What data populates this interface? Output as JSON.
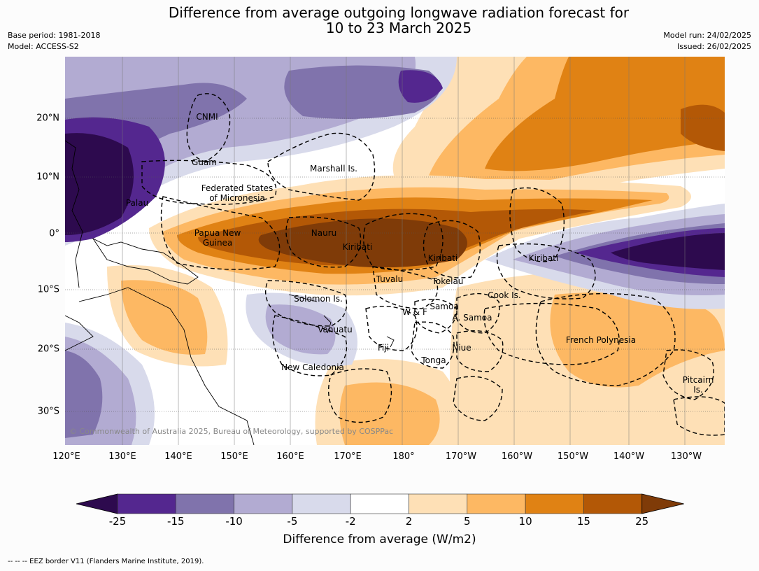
{
  "title_line1": "Difference from average outgoing longwave radiation forecast for",
  "title_line2": "10 to 23 March 2025",
  "base_period": "Base period: 1981-2018",
  "model": "Model: ACCESS-S2",
  "model_run": "Model run: 24/02/2025",
  "issued": "Issued: 26/02/2025",
  "copyright": "© Commonwealth of Australia 2025, Bureau of Meteorology, supported by COSPPac",
  "map": {
    "lon_range": [
      120,
      235
    ],
    "lat_range": [
      -35,
      30
    ],
    "lat_labels": [
      "20°N",
      "10°N",
      "0°",
      "10°S",
      "20°S",
      "30°S"
    ],
    "lon_labels": [
      "120°E",
      "130°E",
      "140°E",
      "150°E",
      "160°E",
      "170°E",
      "180°",
      "170°W",
      "160°W",
      "150°W",
      "140°W",
      "130°W"
    ],
    "place_labels": [
      {
        "text": "CNMI"
      },
      {
        "text": "Guam"
      },
      {
        "text": "Marshall Is."
      },
      {
        "text": "Federated States\nof Micronesia"
      },
      {
        "text": "Palau"
      },
      {
        "text": "Papua New\nGuinea"
      },
      {
        "text": "Nauru"
      },
      {
        "text": "Kiribati"
      },
      {
        "text": "Kiribati"
      },
      {
        "text": "Kiribati"
      },
      {
        "text": "Tuvalu"
      },
      {
        "text": "Tokelau"
      },
      {
        "text": "Solomon Is."
      },
      {
        "text": "Cook Is."
      },
      {
        "text": "W & F"
      },
      {
        "text": "Samoa"
      },
      {
        "text": "A. Samoa"
      },
      {
        "text": "Vanuatu"
      },
      {
        "text": "Fiji"
      },
      {
        "text": "Niue"
      },
      {
        "text": "French Polynesia"
      },
      {
        "text": "Tonga"
      },
      {
        "text": "New Caledonia"
      },
      {
        "text": "Pitcairn\nIs."
      }
    ]
  },
  "colorbar": {
    "title": "Difference from average (W/m2)",
    "ticks": [
      "-25",
      "-15",
      "-10",
      "-5",
      "-2",
      "2",
      "5",
      "10",
      "15",
      "25"
    ],
    "colors": [
      "#2d0a4e",
      "#54278f",
      "#8073ac",
      "#b2abd2",
      "#d8daeb",
      "#ffffff",
      "#fee0b6",
      "#fdb863",
      "#e08214",
      "#b35806",
      "#7f3b08"
    ]
  },
  "footnote": "--  --  -- EEZ border V11 (Flanders Marine Institute, 2019)."
}
